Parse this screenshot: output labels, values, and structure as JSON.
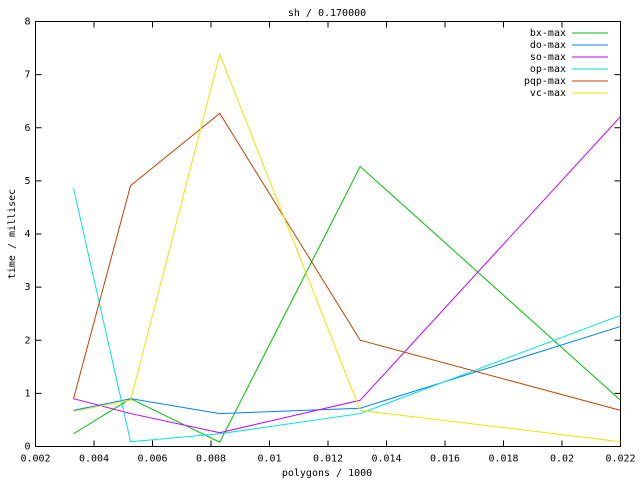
{
  "chart_data": {
    "type": "line",
    "title": "sh / 0.170000",
    "x_label": "polygons / 1000",
    "y_label": "time / millisec",
    "x": [
      0.0033,
      0.00525,
      0.0083,
      0.0131,
      0.022
    ],
    "series": [
      {
        "name": "bx-max",
        "color": "#00c000",
        "values": [
          0.24,
          0.9,
          0.08,
          5.27,
          0.87
        ]
      },
      {
        "name": "do-max",
        "color": "#0080ff",
        "values": [
          0.68,
          0.9,
          0.62,
          0.72,
          2.26
        ]
      },
      {
        "name": "so-max",
        "color": "#c000ff",
        "values": [
          0.9,
          0.62,
          0.26,
          0.87,
          6.21
        ]
      },
      {
        "name": "op-max",
        "color": "#00e0e0",
        "values": [
          4.86,
          0.09,
          0.24,
          0.62,
          2.47
        ]
      },
      {
        "name": "pqp-max",
        "color": "#c04000",
        "values": [
          0.9,
          4.91,
          6.27,
          2.0,
          0.68
        ]
      },
      {
        "name": "vc-max",
        "color": "#e8e800",
        "values": [
          0.66,
          0.87,
          7.38,
          0.68,
          0.09
        ]
      }
    ],
    "xlim": [
      0.002,
      0.022
    ],
    "xticks": [
      0.002,
      0.004,
      0.006,
      0.008,
      0.01,
      0.012,
      0.014,
      0.016,
      0.018,
      0.02,
      0.022
    ],
    "ylim": [
      0,
      8
    ],
    "yticks": [
      0,
      1,
      2,
      3,
      4,
      5,
      6,
      7,
      8
    ],
    "legend": "top-right",
    "grid": false
  }
}
